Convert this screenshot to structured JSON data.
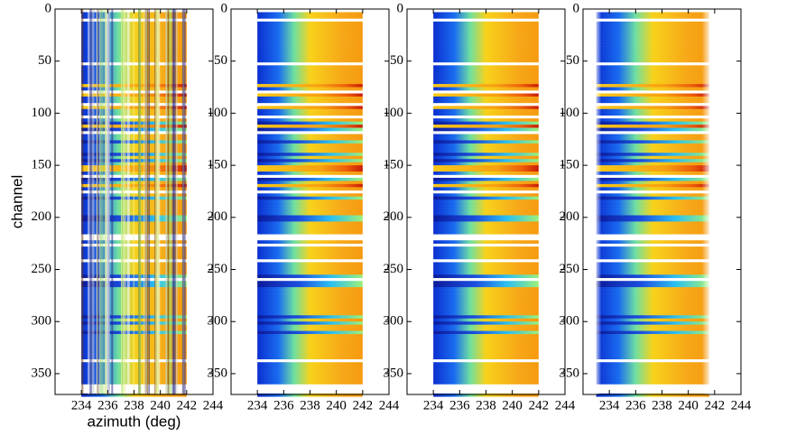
{
  "chart_data": [
    {
      "type": "heatmap",
      "x_label": "azimuth (deg)",
      "y_label": "channel",
      "xlim": [
        232,
        244
      ],
      "xticks": [
        234,
        236,
        238,
        240,
        242,
        244
      ],
      "ylim": [
        370,
        0
      ],
      "yticks": [
        0,
        50,
        100,
        150,
        200,
        250,
        300,
        350
      ]
    },
    {
      "type": "heatmap",
      "xlim": [
        232,
        244
      ],
      "xticks": [
        234,
        236,
        238,
        240,
        242,
        244
      ],
      "ylim": [
        370,
        0
      ],
      "yticks": [
        0,
        50,
        100,
        150,
        200,
        250,
        300,
        350
      ]
    },
    {
      "type": "heatmap",
      "xlim": [
        232,
        244
      ],
      "xticks": [
        234,
        236,
        238,
        240,
        242,
        244
      ],
      "ylim": [
        370,
        0
      ],
      "yticks": [
        0,
        50,
        100,
        150,
        200,
        250,
        300,
        350
      ]
    },
    {
      "type": "heatmap",
      "xlim": [
        232,
        244
      ],
      "xticks": [
        234,
        236,
        238,
        240,
        242,
        244
      ],
      "ylim": [
        370,
        0
      ],
      "yticks": [
        0,
        50,
        100,
        150,
        200,
        250,
        300,
        350
      ]
    }
  ]
}
